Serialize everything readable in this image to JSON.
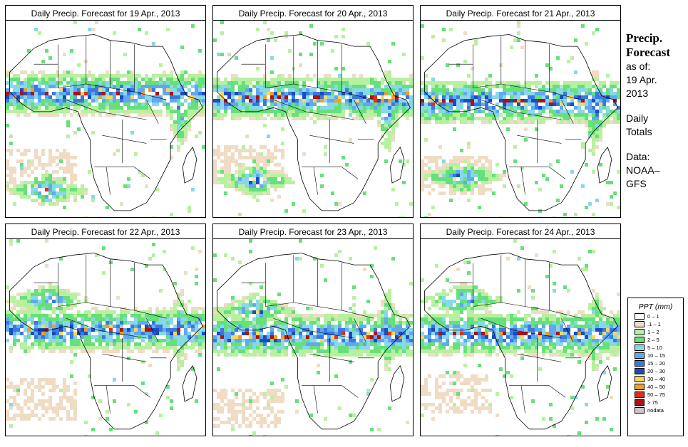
{
  "panels": [
    {
      "title": "Daily Precip. Forecast for  19 Apr., 2013",
      "seed": 19,
      "rain": {
        "itcz_lat": 0.36,
        "south_rain": 0.85,
        "sahara_dust": 0.72
      }
    },
    {
      "title": "Daily Precip. Forecast for  20 Apr., 2013",
      "seed": 20,
      "rain": {
        "itcz_lat": 0.38,
        "south_rain": 0.8,
        "sahara_dust": 0.7
      }
    },
    {
      "title": "Daily Precip. Forecast for  21 Apr., 2013",
      "seed": 21,
      "rain": {
        "itcz_lat": 0.4,
        "south_rain": 0.78,
        "sahara_dust": 0.76
      }
    },
    {
      "title": "Daily Precip. Forecast for  22 Apr., 2013",
      "seed": 22,
      "rain": {
        "itcz_lat": 0.45,
        "south_rain": 0.3,
        "sahara_dust": 0.78
      }
    },
    {
      "title": "Daily Precip. Forecast for  23 Apr., 2013",
      "seed": 23,
      "rain": {
        "itcz_lat": 0.48,
        "south_rain": 0.35,
        "sahara_dust": 0.82
      }
    },
    {
      "title": "Daily Precip. Forecast for  24 Apr., 2013",
      "seed": 24,
      "rain": {
        "itcz_lat": 0.47,
        "south_rain": 0.3,
        "sahara_dust": 0.75
      }
    }
  ],
  "sidebar": {
    "heading_line1": "Precip.",
    "heading_line2": "Forecast",
    "asof_line1": "as of:",
    "asof_line2": "19 Apr.",
    "asof_line3": "2013",
    "totals_line1": "Daily",
    "totals_line2": "Totals",
    "data_line1": "Data:",
    "data_line2": "NOAA–",
    "data_line3": "GFS"
  },
  "legend": {
    "title": "PPT (mm)",
    "items": [
      {
        "label": "0 – 1",
        "color": "#ffffff"
      },
      {
        "label": ".1 – 1",
        "color": "#f0dcc4"
      },
      {
        "label": "1 – 2",
        "color": "#b8f0a0"
      },
      {
        "label": "2 – 5",
        "color": "#66e07a"
      },
      {
        "label": "5 – 10",
        "color": "#88d8e8"
      },
      {
        "label": "10 – 15",
        "color": "#60a8f0"
      },
      {
        "label": "15 – 20",
        "color": "#3a78e0"
      },
      {
        "label": "20 – 30",
        "color": "#1a4cc0"
      },
      {
        "label": "30 – 40",
        "color": "#f5d860"
      },
      {
        "label": "40 – 50",
        "color": "#f0a020"
      },
      {
        "label": "50 – 75",
        "color": "#e03010"
      },
      {
        "label": "> 75",
        "color": "#b01010"
      },
      {
        "label": "nodata",
        "color": "#c8c8c8"
      }
    ]
  }
}
